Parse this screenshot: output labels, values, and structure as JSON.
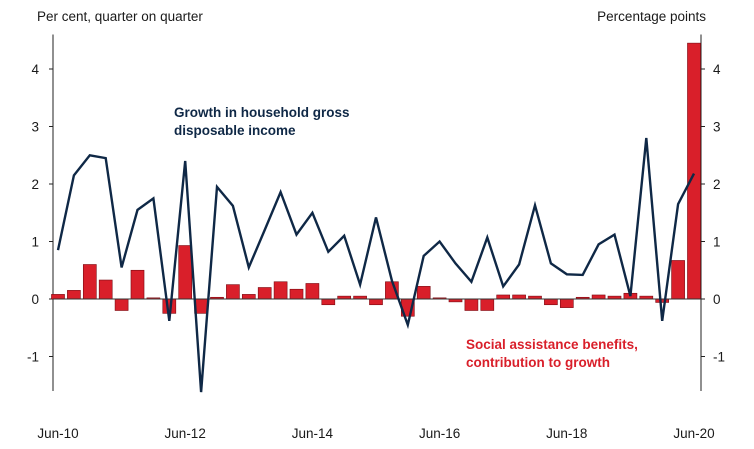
{
  "chart_data": {
    "type": "bar+line",
    "y_left_label": "Per cent, quarter on quarter",
    "y_right_label": "Percentage points",
    "ylim": [
      -1.6,
      4.6
    ],
    "yticks": [
      -1,
      0,
      1,
      2,
      3,
      4
    ],
    "xtick_labels": [
      "Jun-10",
      "Jun-12",
      "Jun-14",
      "Jun-16",
      "Jun-18",
      "Jun-20"
    ],
    "series": [
      {
        "name": "Growth in household gross disposable income",
        "type": "line",
        "color": "#0f2846",
        "values": [
          0.85,
          2.15,
          2.5,
          2.45,
          0.55,
          1.55,
          1.75,
          -0.38,
          2.4,
          -1.62,
          1.95,
          1.62,
          0.55,
          1.2,
          1.86,
          1.12,
          1.5,
          0.82,
          1.1,
          0.25,
          1.42,
          0.32,
          -0.45,
          0.75,
          1.0,
          0.62,
          0.3,
          1.07,
          0.22,
          0.6,
          1.63,
          0.62,
          0.43,
          0.42,
          0.95,
          1.12,
          0.05,
          2.8,
          -0.38,
          1.65,
          2.18
        ]
      },
      {
        "name": "Social assistance benefits, contribution to growth",
        "type": "bar",
        "color": "#d91f2a",
        "values": [
          0.08,
          0.15,
          0.6,
          0.33,
          -0.2,
          0.5,
          0.02,
          -0.25,
          0.93,
          -0.25,
          0.03,
          0.25,
          0.08,
          0.2,
          0.3,
          0.17,
          0.27,
          -0.1,
          0.05,
          0.05,
          -0.1,
          0.3,
          -0.3,
          0.22,
          0.02,
          -0.05,
          -0.2,
          -0.2,
          0.07,
          0.07,
          0.05,
          -0.1,
          -0.15,
          0.03,
          0.07,
          0.05,
          0.1,
          0.05,
          -0.06,
          0.67,
          4.45
        ]
      }
    ],
    "annotations": [
      "Growth in household gross disposable income",
      "Social assistance benefits, contribution to growth"
    ]
  },
  "annotation_lines": {
    "income": [
      "Growth in household gross",
      "disposable income"
    ],
    "social": [
      "Social assistance benefits,",
      "contribution to growth"
    ]
  }
}
